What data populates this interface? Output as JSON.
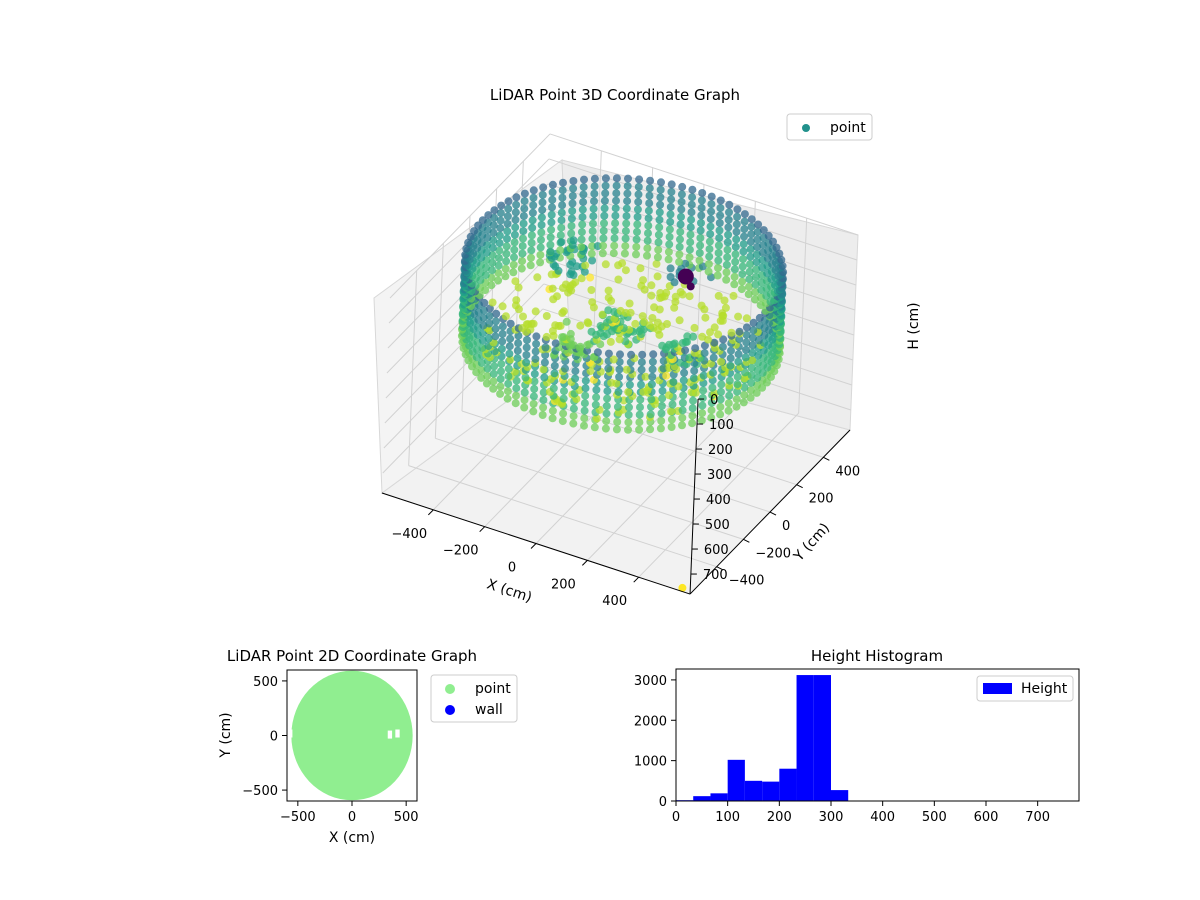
{
  "chart_data": [
    {
      "type": "scatter",
      "projection": "3d",
      "title": "LiDAR Point 3D Coordinate Graph",
      "xlabel": "X (cm)",
      "ylabel": "Y (cm)",
      "zlabel": "H (cm)",
      "xlim": [
        -600,
        600
      ],
      "ylim": [
        -600,
        600
      ],
      "zlim": [
        0,
        780
      ],
      "z_inverted": true,
      "x_ticks": [
        -400,
        -200,
        0,
        200,
        400
      ],
      "x_tick_labels": [
        "−400",
        "−200",
        "0",
        "200",
        "400"
      ],
      "y_ticks": [
        -400,
        -200,
        0,
        200,
        400
      ],
      "y_tick_labels": [
        "−400",
        "−200",
        "0",
        "200",
        "400"
      ],
      "z_ticks": [
        0,
        100,
        200,
        300,
        400,
        500,
        600,
        700
      ],
      "z_tick_labels": [
        "0",
        "100",
        "200",
        "300",
        "400",
        "500",
        "600",
        "700"
      ],
      "grid": true,
      "colormap": "viridis",
      "legend": {
        "placement": "upper-right",
        "entries": [
          {
            "name": "point",
            "color": "#21918c"
          }
        ]
      },
      "series": [
        {
          "name": "point",
          "description": "cylindrical wall of points, radius about 550 cm, heights about 0-300 cm, plus floor/object clusters",
          "wall_radius": 550,
          "wall_height_range": [
            0,
            300
          ],
          "clusters": [
            {
              "x": -300,
              "y": 200,
              "z": 170,
              "count": 30
            },
            {
              "x": 0,
              "y": 0,
              "z": 250,
              "count": 40
            },
            {
              "x": 150,
              "y": 200,
              "z": 90,
              "count": 12
            },
            {
              "x": 250,
              "y": -50,
              "z": 220,
              "count": 20
            },
            {
              "x": -100,
              "y": -150,
              "z": 270,
              "count": 30
            }
          ],
          "outliers": [
            {
              "x": 180,
              "y": 120,
              "z": 45
            },
            {
              "x": 230,
              "y": 60,
              "z": 35
            },
            {
              "x": 560,
              "y": -580,
              "z": 780
            }
          ]
        }
      ]
    },
    {
      "type": "scatter",
      "title": "LiDAR Point 2D Coordinate Graph",
      "xlabel": "X (cm)",
      "ylabel": "Y (cm)",
      "xlim": [
        -600,
        600
      ],
      "ylim": [
        -600,
        600
      ],
      "x_ticks": [
        -500,
        0,
        500
      ],
      "x_tick_labels": [
        "−500",
        "0",
        "500"
      ],
      "y_ticks": [
        -500,
        0,
        500
      ],
      "y_tick_labels": [
        "−500",
        "0",
        "500"
      ],
      "legend": {
        "placement": "outside-right",
        "entries": [
          {
            "name": "point",
            "color": "#90ee90"
          },
          {
            "name": "wall",
            "color": "#0000ff"
          }
        ]
      },
      "series": [
        {
          "name": "point",
          "color": "#90ee90",
          "shape": "filled disc",
          "center": [
            0,
            0
          ],
          "radius": 560
        },
        {
          "name": "wall",
          "color": "#0000ff",
          "points": []
        }
      ],
      "gaps": [
        {
          "x": 330,
          "y": -10,
          "w": 40,
          "h": 40
        },
        {
          "x": 400,
          "y": 0,
          "w": 40,
          "h": 40
        },
        {
          "x": -570,
          "y": 0,
          "w": 20,
          "h": 20
        }
      ]
    },
    {
      "type": "bar",
      "subtype": "histogram",
      "title": "Height Histogram",
      "xlabel": "",
      "ylabel": "",
      "xlim": [
        0,
        780
      ],
      "ylim": [
        0,
        3270
      ],
      "x_ticks": [
        0,
        100,
        200,
        300,
        400,
        500,
        600,
        700
      ],
      "x_tick_labels": [
        "0",
        "100",
        "200",
        "300",
        "400",
        "500",
        "600",
        "700"
      ],
      "y_ticks": [
        0,
        1000,
        2000,
        3000
      ],
      "y_tick_labels": [
        "0",
        "1000",
        "2000",
        "3000"
      ],
      "legend": {
        "placement": "upper-right",
        "entries": [
          {
            "name": "Height",
            "color": "#0000ff"
          }
        ]
      },
      "bin_edges": [
        0,
        33.3,
        66.7,
        100,
        133.3,
        166.7,
        200,
        233.3,
        266.7,
        300,
        333.3,
        366.7,
        400,
        433.3,
        466.7,
        500,
        533.3,
        566.7,
        600,
        633.3,
        666.7,
        700,
        733.3,
        766.7
      ],
      "series": [
        {
          "name": "Height",
          "color": "#0000ff",
          "values": [
            20,
            120,
            190,
            1020,
            500,
            480,
            800,
            3120,
            3120,
            270,
            0,
            0,
            0,
            0,
            0,
            0,
            0,
            0,
            0,
            0,
            0,
            0,
            5
          ]
        }
      ]
    }
  ]
}
